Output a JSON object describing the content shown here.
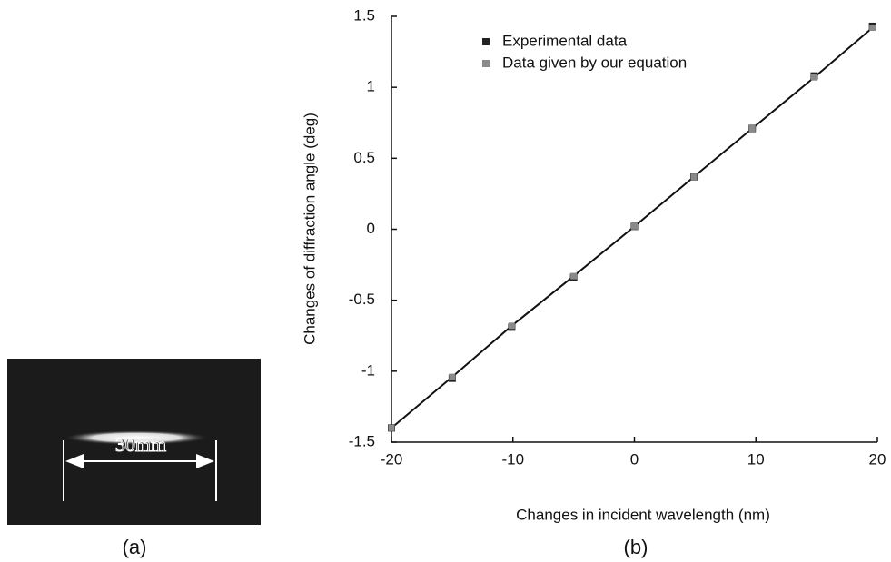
{
  "photo": {
    "scale_text": "30mm",
    "label": "(a)"
  },
  "chart_data": {
    "type": "line",
    "panel_label": "(b)",
    "x_label": "Changes in incident wavelength (nm)",
    "y_label": "Changes of diffraction angle  (deg)",
    "x": [
      -20,
      -15,
      -10.1,
      -5,
      0,
      4.9,
      9.7,
      14.8,
      19.6
    ],
    "series": [
      {
        "name": "Experimental data",
        "color": "#222222",
        "line": false,
        "values": [
          -1.4,
          -1.05,
          -0.69,
          -0.34,
          0.02,
          0.37,
          0.71,
          1.08,
          1.43
        ]
      },
      {
        "name": "Data given by our equation",
        "color": "#8a8a8a",
        "line": true,
        "values": [
          -1.4,
          -1.04,
          -0.68,
          -0.33,
          0.02,
          0.37,
          0.71,
          1.07,
          1.42
        ]
      }
    ],
    "xlim": [
      -20,
      20
    ],
    "xticks": [
      -20,
      -10,
      0,
      10,
      20
    ],
    "ylim": [
      -1.5,
      1.5
    ],
    "yticks": [
      -1.5,
      -1,
      -0.5,
      0,
      0.5,
      1,
      1.5
    ],
    "legend": "upper left",
    "grid": false
  }
}
